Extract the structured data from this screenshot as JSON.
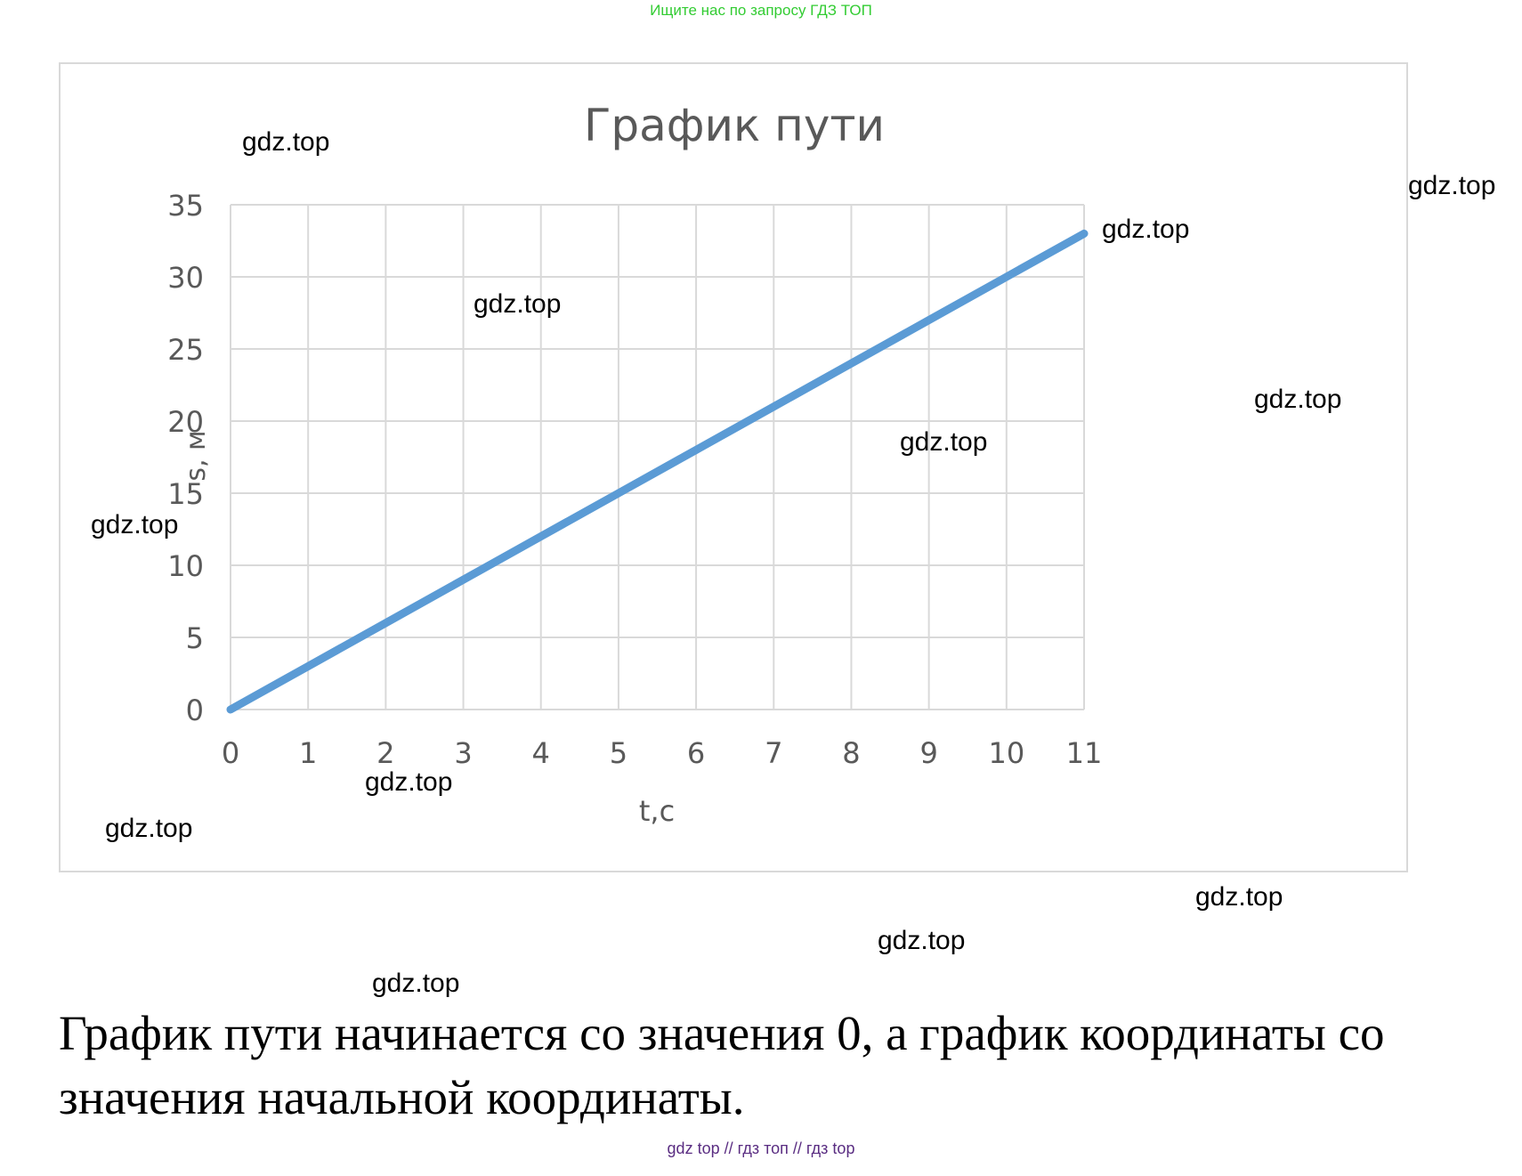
{
  "banner": "Ищите нас по запросу ГДЗ ТОП",
  "chart_data": {
    "type": "line",
    "title": "График пути",
    "xlabel": "t,c",
    "ylabel": "s, м",
    "x": [
      0,
      1,
      2,
      3,
      4,
      5,
      6,
      7,
      8,
      9,
      10,
      11
    ],
    "xticks": [
      "0",
      "1",
      "2",
      "3",
      "4",
      "5",
      "6",
      "7",
      "8",
      "9",
      "10",
      "11"
    ],
    "yticks": [
      "0",
      "5",
      "10",
      "15",
      "20",
      "25",
      "30",
      "35"
    ],
    "series": [
      {
        "values": [
          0,
          3,
          6,
          9,
          12,
          15,
          18,
          21,
          24,
          27,
          30,
          33
        ]
      }
    ],
    "xlim": [
      0,
      11
    ],
    "ylim": [
      0,
      35
    ],
    "grid": true,
    "line_color": "#5b9bd5"
  },
  "watermarks": [
    "gdz.top",
    "gdz.top",
    "gdz.top",
    "gdz.top",
    "gdz.top",
    "gdz.top",
    "gdz.top",
    "gdz.top",
    "gdz.top",
    "gdz.top",
    "gdz.top",
    "gdz.top"
  ],
  "caption": "График пути начинается со значения 0, а график координаты со значения начальной координаты.",
  "footer": "gdz top  //  гдз топ  //  гдз top"
}
